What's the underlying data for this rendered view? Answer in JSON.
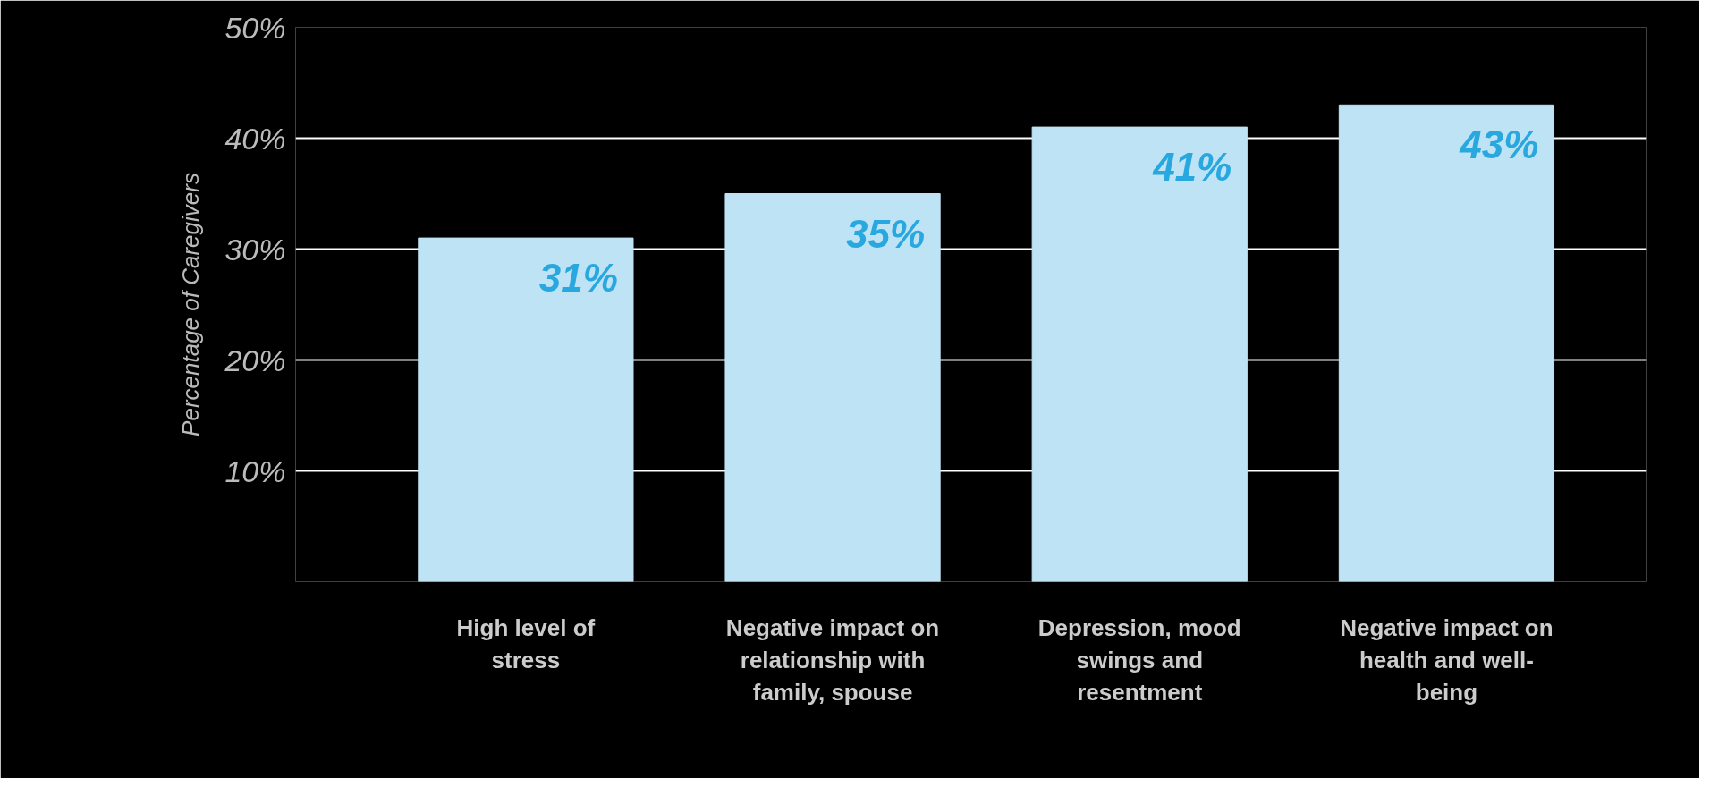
{
  "chart_data": {
    "type": "bar",
    "ylabel": "Percentage of Caregivers",
    "categories": [
      "High level of stress",
      "Negative impact on relationship with family, spouse",
      "Depression, mood swings and resentment",
      "Negative impact on health and well-being"
    ],
    "values": [
      31,
      35,
      41,
      43
    ],
    "color": "#bee3f5",
    "value_labels": [
      "31%",
      "35%",
      "41%",
      "43%"
    ],
    "ylim": [
      0,
      50
    ],
    "yticks": [
      {
        "value": 0,
        "label": null
      },
      {
        "value": 10,
        "label": "10%"
      },
      {
        "value": 20,
        "label": "20%"
      },
      {
        "value": 30,
        "label": "30%"
      },
      {
        "value": 40,
        "label": "40%"
      },
      {
        "value": 50,
        "label": "50%"
      }
    ],
    "grid": "y"
  }
}
